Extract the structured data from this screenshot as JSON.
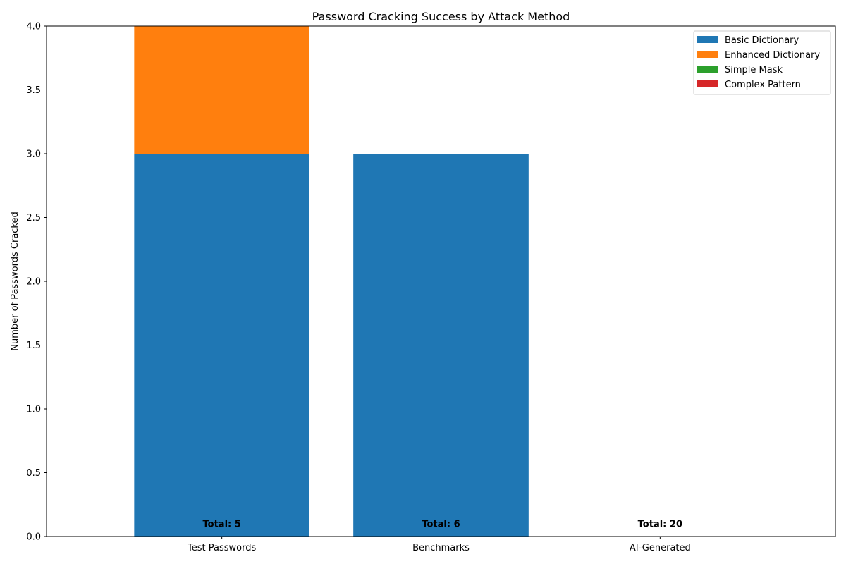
{
  "chart_data": {
    "type": "bar",
    "stacked": true,
    "title": "Password Cracking Success by Attack Method",
    "xlabel": "",
    "ylabel": "Number of Passwords Cracked",
    "ylim": [
      0,
      4
    ],
    "yticks": [
      "0.0",
      "0.5",
      "1.0",
      "1.5",
      "2.0",
      "2.5",
      "3.0",
      "3.5",
      "4.0"
    ],
    "categories": [
      "Test Passwords",
      "Benchmarks",
      "AI-Generated"
    ],
    "series": [
      {
        "name": "Basic Dictionary",
        "values": [
          3,
          3,
          0
        ],
        "color": "#1f77b4"
      },
      {
        "name": "Enhanced Dictionary",
        "values": [
          1,
          0,
          0
        ],
        "color": "#ff7f0e"
      },
      {
        "name": "Simple Mask",
        "values": [
          0,
          0,
          0
        ],
        "color": "#2ca02c"
      },
      {
        "name": "Complex Pattern",
        "values": [
          0,
          0,
          0
        ],
        "color": "#d62728"
      }
    ],
    "totals": [
      "Total: 5",
      "Total: 6",
      "Total: 20"
    ],
    "legend_position": "top-right",
    "grid": false
  }
}
